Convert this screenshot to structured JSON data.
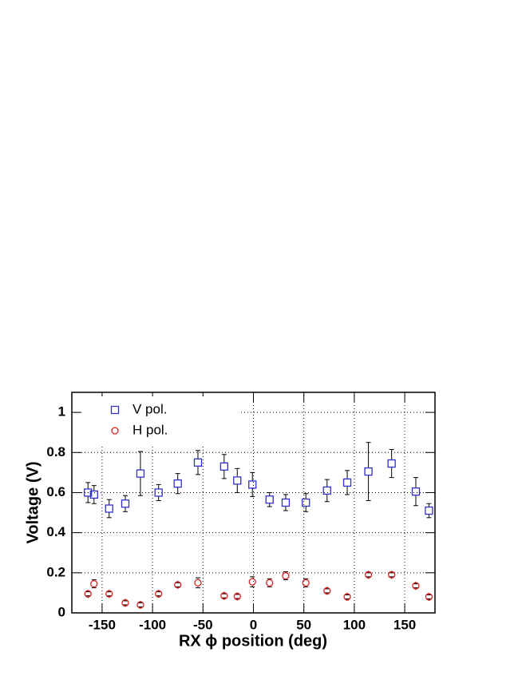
{
  "chart_data": {
    "type": "scatter",
    "xlabel": "RX ϕ position (deg)",
    "ylabel": "Voltage (V)",
    "xlim": [
      -180,
      180
    ],
    "xticks": [
      -150,
      -100,
      -50,
      0,
      50,
      100,
      150
    ],
    "ylim": [
      0,
      1.1
    ],
    "yticks": [
      0,
      0.2,
      0.4,
      0.6,
      0.8,
      1
    ],
    "grid": true,
    "legend": "upper left",
    "x": [
      -164,
      -158,
      -143,
      -127,
      -112,
      -94,
      -75,
      -55,
      -29,
      -16,
      -1,
      16,
      32,
      52,
      73,
      93,
      114,
      137,
      161,
      174
    ],
    "series": [
      {
        "name": "V pol.",
        "color": "#3030d0",
        "marker": "square",
        "values": [
          0.6,
          0.59,
          0.52,
          0.545,
          0.695,
          0.6,
          0.645,
          0.75,
          0.73,
          0.66,
          0.64,
          0.565,
          0.55,
          0.55,
          0.61,
          0.65,
          0.705,
          0.745,
          0.605,
          0.51
        ],
        "errors": [
          0.05,
          0.045,
          0.045,
          0.04,
          0.11,
          0.04,
          0.05,
          0.06,
          0.06,
          0.06,
          0.06,
          0.035,
          0.04,
          0.045,
          0.055,
          0.06,
          0.145,
          0.07,
          0.07,
          0.035
        ]
      },
      {
        "name": "H pol.",
        "color": "#e02020",
        "marker": "circle",
        "values": [
          0.095,
          0.145,
          0.095,
          0.05,
          0.04,
          0.095,
          0.14,
          0.15,
          0.085,
          0.082,
          0.155,
          0.15,
          0.185,
          0.15,
          0.11,
          0.08,
          0.19,
          0.19,
          0.135,
          0.08
        ],
        "errors": [
          0.01,
          0.02,
          0.01,
          0.01,
          0.01,
          0.01,
          0.01,
          0.025,
          0.01,
          0.01,
          0.025,
          0.02,
          0.02,
          0.02,
          0.01,
          0.01,
          0.01,
          0.01,
          0.01,
          0.01
        ]
      }
    ]
  }
}
